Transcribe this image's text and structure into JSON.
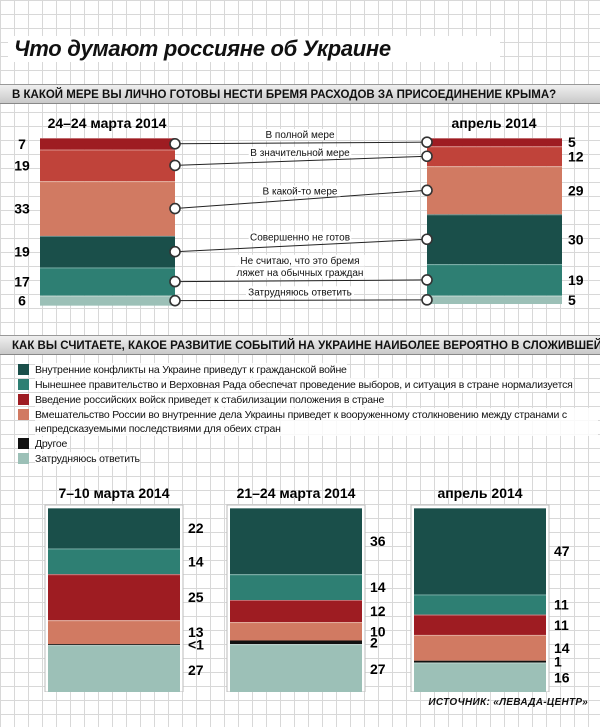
{
  "title": "Что думают россияне об Украине",
  "source": "ИСТОЧНИК: «ЛЕВАДА-ЦЕНТР»",
  "colors": {
    "maroon": "#9e1c22",
    "red": "#c0433a",
    "salmon": "#d17a62",
    "dark_teal": "#1a4f4a",
    "teal": "#2e7f73",
    "pale_teal": "#9cc0b7",
    "black": "#111111"
  },
  "chart_data": [
    {
      "type": "bar",
      "stacked": true,
      "question": "В КАКОЙ МЕРЕ ВЫ ЛИЧНО ГОТОВЫ НЕСТИ БРЕМЯ РАСХОДОВ ЗА ПРИСОЕДИНЕНИЕ КРЫМА?",
      "categories": [
        "24–24 марта 2014",
        "апрель 2014"
      ],
      "series": [
        {
          "name": "В полной мере",
          "color_key": "maroon",
          "values": [
            7,
            5
          ],
          "labels": [
            "7",
            "5"
          ]
        },
        {
          "name": "В значительной мере",
          "color_key": "red",
          "values": [
            19,
            12
          ],
          "labels": [
            "19",
            "12"
          ]
        },
        {
          "name": "В какой-то мере",
          "color_key": "salmon",
          "values": [
            33,
            29
          ],
          "labels": [
            "33",
            "29"
          ]
        },
        {
          "name": "Совершенно не готов",
          "color_key": "dark_teal",
          "values": [
            19,
            30
          ],
          "labels": [
            "19",
            "30"
          ]
        },
        {
          "name": "Не считаю, что это бремя ляжет на обычных граждан",
          "color_key": "teal",
          "values": [
            17,
            19
          ],
          "labels": [
            "17",
            "19"
          ]
        },
        {
          "name": "Затрудняюсь ответить",
          "color_key": "pale_teal",
          "values": [
            6,
            5
          ],
          "labels": [
            "6",
            "5"
          ]
        }
      ]
    },
    {
      "type": "bar",
      "stacked": true,
      "question": "КАК ВЫ СЧИТАЕТЕ, КАКОЕ РАЗВИТИЕ СОБЫТИЙ НА УКРАИНЕ НАИБОЛЕЕ ВЕРОЯТНО В СЛОЖИВШЕЙСЯ СИТУАЦИИ?",
      "categories": [
        "7–10 марта 2014",
        "21–24 марта 2014",
        "апрель 2014"
      ],
      "series": [
        {
          "name": "Внутренние конфликты на Украине приведут к гражданской войне",
          "color_key": "dark_teal",
          "values": [
            22,
            36,
            47
          ],
          "labels": [
            "22",
            "36",
            "47"
          ]
        },
        {
          "name": "Нынешнее правительство и Верховная Рада обеспечат проведение выборов, и ситуация в стране нормализуется",
          "color_key": "teal",
          "values": [
            14,
            14,
            11
          ],
          "labels": [
            "14",
            "14",
            "11"
          ]
        },
        {
          "name": "Введение российских войск приведет к стабилизации положения в стране",
          "color_key": "maroon",
          "values": [
            25,
            12,
            11
          ],
          "labels": [
            "25",
            "12",
            "11"
          ]
        },
        {
          "name": "Вмешательство России во внутренние дела Украины приведет к вооруженному столкновению между странами с непредсказуемыми последствиями для обеих стран",
          "color_key": "salmon",
          "values": [
            13,
            10,
            14
          ],
          "labels": [
            "13",
            "10",
            "14"
          ]
        },
        {
          "name": "Другое",
          "color_key": "black",
          "values": [
            0.5,
            2,
            1
          ],
          "labels": [
            "<1",
            "2",
            "1"
          ]
        },
        {
          "name": "Затрудняюсь ответить",
          "color_key": "pale_teal",
          "values": [
            27,
            27,
            16
          ],
          "labels": [
            "27",
            "27",
            "16"
          ]
        }
      ]
    }
  ],
  "chart1": {
    "connector_labels": [
      [
        "В полной мере"
      ],
      [
        "В значительной мере"
      ],
      [
        "В какой-то мере"
      ],
      [
        "Совершенно не готов"
      ],
      [
        "Не считаю, что это бремя",
        "ляжет на обычных граждан"
      ],
      [
        "Затрудняюсь ответить"
      ]
    ]
  },
  "legend": {
    "items": [
      {
        "label": "Внутренние конфликты на Украине приведут к гражданской войне",
        "color_key": "dark_teal"
      },
      {
        "label": "Нынешнее правительство и Верховная Рада обеспечат проведение выборов, и ситуация в стране нормализуется",
        "color_key": "teal"
      },
      {
        "label": "Введение российских войск приведет к стабилизации положения в стране",
        "color_key": "maroon"
      },
      {
        "label": "Вмешательство России во внутренние дела Украины приведет к вооруженному столкновению между странами с непредсказуемыми последствиями для обеих стран",
        "color_key": "salmon"
      },
      {
        "label": "Другое",
        "color_key": "black"
      },
      {
        "label": "Затрудняюсь ответить",
        "color_key": "pale_teal"
      }
    ]
  }
}
